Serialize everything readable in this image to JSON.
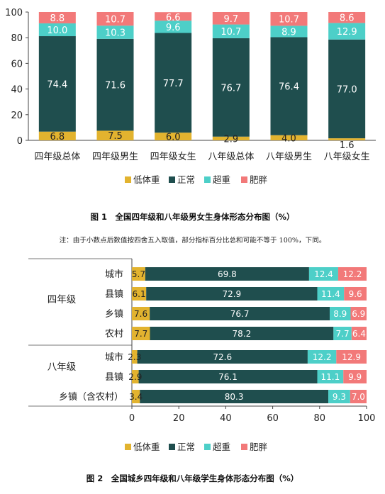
{
  "figure1": {
    "caption": "图 1　全国四年级和八年级男女生身体形态分布图（%）",
    "note": "注：由于小数点后数值按四舍五入取值，部分指标百分比总和可能不等于 100%，下同。"
  },
  "figure2": {
    "caption": "图 2　全国城乡四年级和八年级学生身体形态分布图（%）"
  },
  "chart_data": [
    {
      "type": "bar",
      "orientation": "vertical",
      "stacked": true,
      "title": "",
      "categories": [
        "四年级总体",
        "四年级男生",
        "四年级女生",
        "八年级总体",
        "八年级男生",
        "八年级女生"
      ],
      "series": [
        {
          "name": "低体重",
          "color": "#E2B32F",
          "values": [
            6.8,
            7.5,
            6.0,
            2.9,
            4.0,
            1.6
          ]
        },
        {
          "name": "正常",
          "color": "#1F4E4E",
          "values": [
            74.4,
            71.6,
            77.7,
            76.7,
            76.4,
            77.0
          ]
        },
        {
          "name": "超重",
          "color": "#4DCFC8",
          "values": [
            10.0,
            10.3,
            9.6,
            10.7,
            8.9,
            12.9
          ]
        },
        {
          "name": "肥胖",
          "color": "#F27979",
          "values": [
            8.8,
            10.7,
            6.6,
            9.7,
            10.7,
            8.6
          ]
        }
      ],
      "ylim": [
        0,
        100
      ],
      "yticks": [
        0,
        20,
        40,
        60,
        80,
        100
      ],
      "grid": false,
      "legend": "bottom"
    },
    {
      "type": "bar",
      "orientation": "horizontal",
      "stacked": true,
      "title": "",
      "groups": [
        {
          "label": "四年级",
          "rows": [
            "城市",
            "县镇",
            "乡镇",
            "农村"
          ]
        },
        {
          "label": "八年级",
          "rows": [
            "城市",
            "县镇",
            "乡镇（含农村）"
          ]
        }
      ],
      "categories": [
        "城市",
        "县镇",
        "乡镇",
        "农村",
        "城市",
        "县镇",
        "乡镇（含农村）"
      ],
      "series": [
        {
          "name": "低体重",
          "color": "#E2B32F",
          "values": [
            5.7,
            6.1,
            7.6,
            7.7,
            2.3,
            2.9,
            3.4
          ]
        },
        {
          "name": "正常",
          "color": "#1F4E4E",
          "values": [
            69.8,
            72.9,
            76.7,
            78.2,
            72.6,
            76.1,
            80.3
          ]
        },
        {
          "name": "超重",
          "color": "#4DCFC8",
          "values": [
            12.4,
            11.4,
            8.9,
            7.7,
            12.2,
            11.1,
            9.3
          ]
        },
        {
          "name": "肥胖",
          "color": "#F27979",
          "values": [
            12.2,
            9.6,
            6.9,
            6.4,
            12.9,
            9.9,
            7.0
          ]
        }
      ],
      "xlim": [
        0,
        100
      ],
      "xticks": [
        0,
        20,
        40,
        60,
        80,
        100
      ],
      "grid": false,
      "legend": "bottom"
    }
  ]
}
